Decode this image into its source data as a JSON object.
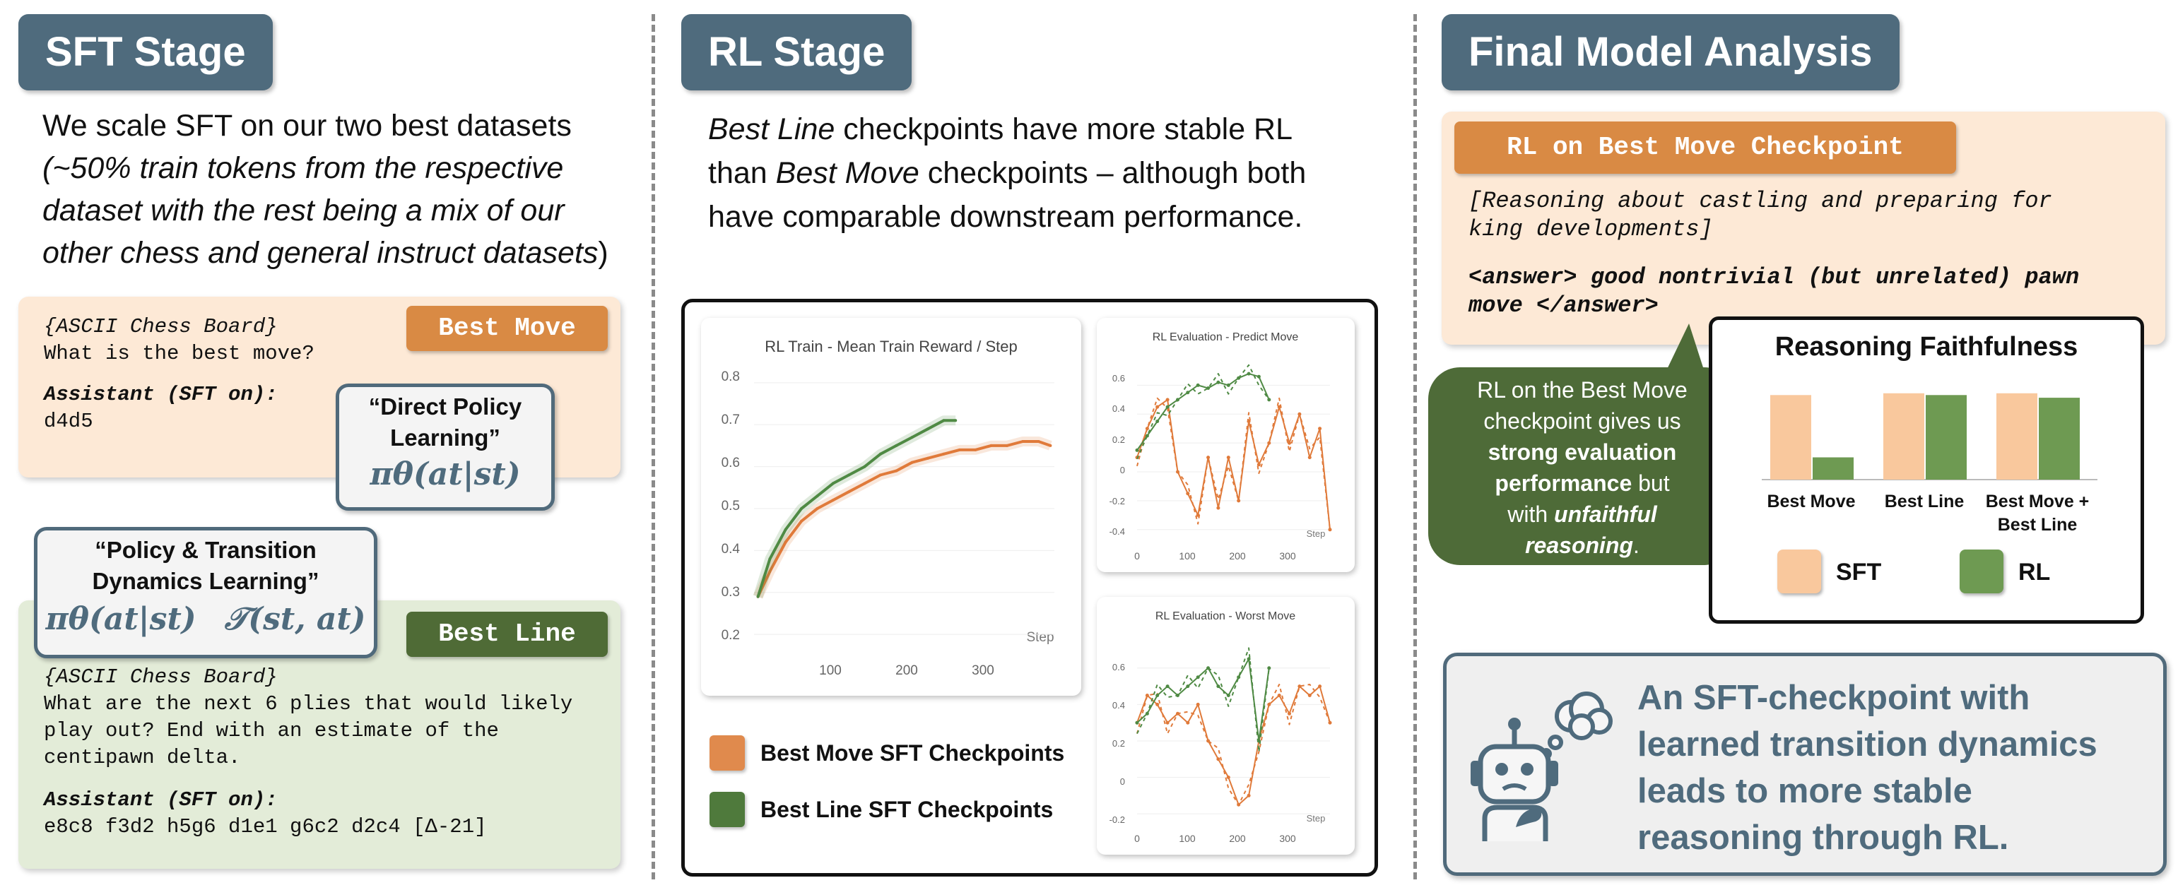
{
  "sft": {
    "title": "SFT Stage",
    "intro_line1": "We scale SFT on our two best datasets",
    "intro_line2": "(~50% train tokens from the respective",
    "intro_line3": "dataset with the rest being a mix of our",
    "intro_line4": "other chess and general instruct datasets",
    "intro_line4_end": ")",
    "best_move": {
      "tag": "Best Move",
      "lines": [
        "{ASCII Chess Board}",
        "What is the best move?"
      ],
      "assistant_label": "Assistant (SFT on):",
      "answer": "d4d5"
    },
    "direct_policy": {
      "title_line1": "“Direct Policy",
      "title_line2": "Learning”",
      "formula": "πθ(at|st)"
    },
    "transition_policy": {
      "title_line1": "“Policy & Transition",
      "title_line2": "Dynamics Learning”",
      "formula1": "πθ(at|st)",
      "formula2": "𝒯(st, at)"
    },
    "best_line": {
      "tag": "Best Line",
      "lines": [
        "{ASCII Chess Board}",
        "What are the next 6 plies that would likely",
        "play out? End with an estimate of the",
        "centipawn delta."
      ],
      "assistant_label": "Assistant (SFT on):",
      "answer": "e8c8 f3d2 h5g6 d1e1 g6c2 d2c4 [Δ-21]"
    }
  },
  "rl": {
    "title": "RL Stage",
    "intro_em1": "Best Line",
    "intro_t1": " checkpoints have more stable RL",
    "intro_t2a": "than ",
    "intro_em2": "Best Move",
    "intro_t2b": " checkpoints – although both",
    "intro_t3": "have comparable downstream performance.",
    "legend": [
      {
        "label": "Best Move SFT Checkpoints",
        "color": "#e08a4d"
      },
      {
        "label": "Best Line SFT Checkpoints",
        "color": "#4f7a3c"
      }
    ]
  },
  "chart_data": [
    {
      "type": "line",
      "title": "RL Train - Mean Train Reward / Step",
      "xlabel": "Step",
      "xticks": [
        100,
        200,
        300
      ],
      "yticks": [
        0.2,
        0.3,
        0.4,
        0.5,
        0.6,
        0.7,
        0.8
      ],
      "xlim": [
        0,
        380
      ],
      "ylim": [
        0.18,
        0.82
      ],
      "series": [
        {
          "name": "Best Move SFT Checkpoints",
          "color": "#e07a3a",
          "x": [
            5,
            20,
            40,
            60,
            80,
            100,
            120,
            140,
            160,
            180,
            200,
            220,
            240,
            260,
            280,
            300,
            320,
            340,
            360,
            375
          ],
          "y": [
            0.29,
            0.35,
            0.42,
            0.47,
            0.5,
            0.52,
            0.54,
            0.56,
            0.58,
            0.59,
            0.61,
            0.62,
            0.63,
            0.64,
            0.64,
            0.65,
            0.65,
            0.66,
            0.66,
            0.65
          ]
        },
        {
          "name": "Best Line SFT Checkpoints",
          "color": "#4f8a44",
          "x": [
            5,
            20,
            40,
            60,
            80,
            100,
            120,
            140,
            160,
            180,
            200,
            220,
            240,
            255
          ],
          "y": [
            0.29,
            0.38,
            0.45,
            0.5,
            0.53,
            0.56,
            0.58,
            0.6,
            0.63,
            0.65,
            0.67,
            0.69,
            0.71,
            0.71
          ]
        }
      ]
    },
    {
      "type": "line",
      "title": "RL Evaluation - Predict Move",
      "xlabel": "Step",
      "xticks": [
        0,
        100,
        200,
        300
      ],
      "yticks": [
        -0.4,
        -0.2,
        0,
        0.2,
        0.4,
        0.6
      ],
      "xlim": [
        0,
        380
      ],
      "ylim": [
        -0.45,
        0.7
      ],
      "series": [
        {
          "name": "Best Move SFT Checkpoints",
          "color": "#e07a3a",
          "x": [
            0,
            20,
            40,
            60,
            80,
            100,
            120,
            140,
            160,
            180,
            200,
            220,
            240,
            260,
            280,
            300,
            320,
            340,
            360,
            380
          ],
          "y": [
            0.1,
            0.3,
            0.45,
            0.5,
            0.0,
            -0.15,
            -0.3,
            0.1,
            -0.25,
            0.1,
            -0.2,
            0.35,
            0.05,
            0.2,
            0.45,
            0.2,
            0.4,
            0.1,
            0.3,
            -0.4
          ]
        },
        {
          "name": "Best Line SFT Checkpoints",
          "color": "#4f8a44",
          "x": [
            0,
            20,
            40,
            60,
            80,
            100,
            120,
            140,
            160,
            180,
            200,
            220,
            240,
            260
          ],
          "y": [
            0.15,
            0.25,
            0.35,
            0.45,
            0.5,
            0.55,
            0.6,
            0.58,
            0.62,
            0.6,
            0.65,
            0.68,
            0.66,
            0.5
          ]
        }
      ]
    },
    {
      "type": "line",
      "title": "RL Evaluation - Worst Move",
      "xlabel": "Step",
      "xticks": [
        0,
        100,
        200,
        300
      ],
      "yticks": [
        -0.2,
        0,
        0.2,
        0.4,
        0.6
      ],
      "xlim": [
        0,
        380
      ],
      "ylim": [
        -0.25,
        0.7
      ],
      "series": [
        {
          "name": "Best Move SFT Checkpoints",
          "color": "#e07a3a",
          "x": [
            0,
            20,
            40,
            60,
            80,
            100,
            120,
            140,
            160,
            180,
            200,
            220,
            240,
            260,
            280,
            300,
            320,
            340,
            360,
            380
          ],
          "y": [
            0.3,
            0.45,
            0.4,
            0.3,
            0.35,
            0.3,
            0.4,
            0.2,
            0.1,
            0.0,
            -0.15,
            -0.1,
            0.2,
            0.4,
            0.45,
            0.35,
            0.5,
            0.45,
            0.5,
            0.3
          ]
        },
        {
          "name": "Best Line SFT Checkpoints",
          "color": "#4f8a44",
          "x": [
            0,
            20,
            40,
            60,
            80,
            100,
            120,
            140,
            160,
            180,
            200,
            220,
            240,
            260
          ],
          "y": [
            0.3,
            0.35,
            0.45,
            0.5,
            0.45,
            0.5,
            0.55,
            0.6,
            0.5,
            0.45,
            0.55,
            0.65,
            0.2,
            0.6
          ]
        }
      ]
    },
    {
      "type": "bar",
      "title": "Reasoning Faithfulness",
      "categories": [
        "Best Move",
        "Best Line",
        "Best Move + Best Line"
      ],
      "series": [
        {
          "name": "SFT",
          "color": "#f9c89d",
          "values": [
            0.95,
            0.97,
            0.97
          ]
        },
        {
          "name": "RL",
          "color": "#6e9a52",
          "values": [
            0.25,
            0.95,
            0.92
          ]
        }
      ],
      "ylim": [
        0,
        1
      ]
    }
  ],
  "final": {
    "title": "Final Model Analysis",
    "rl_tag": "RL on Best Move Checkpoint",
    "reasoning_line1": "[Reasoning about castling and preparing for",
    "reasoning_line2": "king developments]",
    "answer_line1": "<answer> good nontrivial (but unrelated) pawn",
    "answer_line2": "move </answer>",
    "bubble": {
      "l1": "RL on the Best Move",
      "l2": "checkpoint gives us",
      "l3": "strong evaluation",
      "l4": "performance",
      "l4b": " but",
      "l5": "with ",
      "l5em": "unfaithful",
      "l6": "reasoning",
      "l6b": "."
    },
    "faithfulness": {
      "title": "Reasoning Faithfulness",
      "cat1": "Best Move",
      "cat2": "Best Line",
      "cat3a": "Best Move +",
      "cat3b": "Best Line",
      "legend_sft": "SFT",
      "legend_rl": "RL"
    },
    "conclusion": {
      "l1": "An SFT-checkpoint with",
      "l2": "learned transition dynamics",
      "l3": "leads to more stable",
      "l4": "reasoning through RL."
    }
  }
}
